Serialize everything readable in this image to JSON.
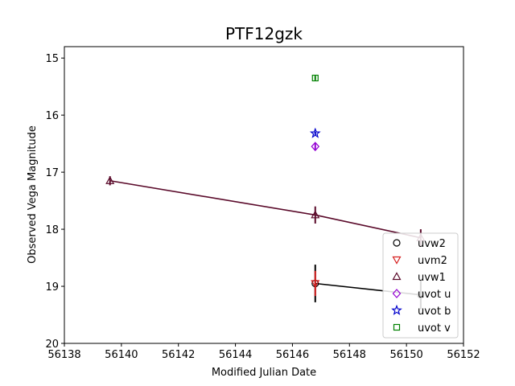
{
  "chart_data": {
    "type": "scatter",
    "title": "PTF12gzk",
    "xlabel": "Modified Julian Date",
    "ylabel": "Observed Vega Magnitude",
    "xlim": [
      56138,
      56152
    ],
    "ylim": [
      20,
      14.8
    ],
    "y_inverted": true,
    "x_ticks": [
      56138,
      56140,
      56142,
      56144,
      56146,
      56148,
      56150,
      56152
    ],
    "y_ticks": [
      15,
      16,
      17,
      18,
      19,
      20
    ],
    "grid": false,
    "legend_position": "lower-right",
    "series": [
      {
        "name": "uvw2",
        "marker": "circle",
        "color": "#000000",
        "connected": true,
        "points": [
          {
            "x": 56146.8,
            "y": 18.95,
            "err": 0.33
          },
          {
            "x": 56150.5,
            "y": 19.15,
            "err": 0.25
          }
        ]
      },
      {
        "name": "uvm2",
        "marker": "triangle-down",
        "color": "#d62020",
        "connected": false,
        "points": [
          {
            "x": 56146.8,
            "y": 18.95,
            "err": 0.22
          }
        ]
      },
      {
        "name": "uvw1",
        "marker": "triangle-up",
        "color": "#5a0a2a",
        "connected": true,
        "points": [
          {
            "x": 56139.6,
            "y": 17.15,
            "err": 0.08
          },
          {
            "x": 56146.8,
            "y": 17.75,
            "err": 0.15
          },
          {
            "x": 56150.5,
            "y": 18.15,
            "err": 0.15
          }
        ]
      },
      {
        "name": "uvot u",
        "marker": "diamond",
        "color": "#9400d3",
        "connected": false,
        "points": [
          {
            "x": 56146.8,
            "y": 16.55,
            "err": 0.06
          }
        ]
      },
      {
        "name": "uvot b",
        "marker": "star",
        "color": "#0000cc",
        "connected": false,
        "points": [
          {
            "x": 56146.8,
            "y": 16.32,
            "err": 0.03
          }
        ]
      },
      {
        "name": "uvot v",
        "marker": "square",
        "color": "#008000",
        "connected": false,
        "points": [
          {
            "x": 56146.8,
            "y": 15.35,
            "err": 0.04
          }
        ]
      }
    ]
  }
}
